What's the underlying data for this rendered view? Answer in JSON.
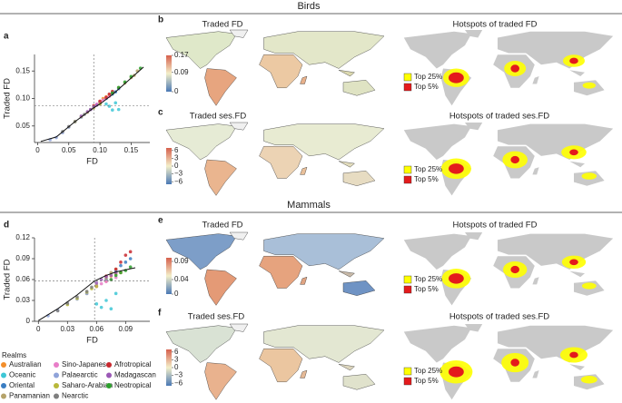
{
  "chart_data": [
    {
      "type": "scatter",
      "xlabel": "FD",
      "ylabel": "Traded FD",
      "legend_title": "Realms",
      "xlim": [
        -0.005,
        0.18
      ],
      "ylim": [
        0.02,
        0.18
      ],
      "xticks": [
        0,
        0.05,
        {
          "value": 0.1,
          "label": "0.10"
        },
        0.15
      ],
      "yticks": [
        0.05,
        {
          "value": 0.1,
          "label": "0.10"
        },
        0.15
      ],
      "vline": 0.09,
      "hline": 0.087,
      "fit": {
        "x": [
          0.005,
          0.03,
          0.06,
          0.09,
          0.1,
          0.12,
          0.14,
          0.17
        ],
        "values": [
          0.022,
          0.03,
          0.058,
          0.083,
          0.09,
          0.107,
          0.127,
          0.157
        ]
      },
      "series": [
        {
          "name": "Australian",
          "color": "#f28e2b",
          "x": [
            0.1,
            0.105,
            0.11,
            0.115,
            0.12
          ],
          "values": [
            0.095,
            0.1,
            0.103,
            0.107,
            0.11
          ]
        },
        {
          "name": "Oceanic",
          "color": "#3ec7d6",
          "x": [
            0.11,
            0.115,
            0.12,
            0.125,
            0.13
          ],
          "values": [
            0.09,
            0.086,
            0.079,
            0.092,
            0.08
          ]
        },
        {
          "name": "Oriental",
          "color": "#3a7dc2",
          "x": [
            0.1,
            0.11,
            0.12,
            0.125,
            0.13
          ],
          "values": [
            0.092,
            0.1,
            0.108,
            0.112,
            0.118
          ]
        },
        {
          "name": "Panamanian",
          "color": "#b5a36a",
          "x": [
            0.13,
            0.14,
            0.15,
            0.155,
            0.16
          ],
          "values": [
            0.12,
            0.128,
            0.138,
            0.142,
            0.15
          ]
        },
        {
          "name": "Sino-Japanese",
          "color": "#e87dc8",
          "x": [
            0.095,
            0.1,
            0.105,
            0.11,
            0.115
          ],
          "values": [
            0.09,
            0.094,
            0.097,
            0.101,
            0.104
          ]
        },
        {
          "name": "Palaearctic",
          "color": "#8fa3d9",
          "x": [
            0.02,
            0.03,
            0.04,
            0.05,
            0.07
          ],
          "values": [
            0.025,
            0.029,
            0.038,
            0.048,
            0.066
          ]
        },
        {
          "name": "Saharo-Arabian",
          "color": "#b8b83a",
          "x": [
            0.06,
            0.07,
            0.08,
            0.09,
            0.1
          ],
          "values": [
            0.058,
            0.067,
            0.075,
            0.083,
            0.09
          ]
        },
        {
          "name": "Nearctic",
          "color": "#7f7f7f",
          "x": [
            0.04,
            0.05,
            0.06,
            0.075,
            0.085
          ],
          "values": [
            0.04,
            0.049,
            0.058,
            0.071,
            0.08
          ]
        },
        {
          "name": "Afrotropical",
          "color": "#c8282e",
          "x": [
            0.09,
            0.1,
            0.11,
            0.115,
            0.12
          ],
          "values": [
            0.087,
            0.095,
            0.102,
            0.108,
            0.113
          ]
        },
        {
          "name": "Madagascan",
          "color": "#9b59b6",
          "x": [
            0.07,
            0.08,
            0.085,
            0.09,
            0.095
          ],
          "values": [
            0.068,
            0.076,
            0.08,
            0.085,
            0.088
          ]
        },
        {
          "name": "Neotropical",
          "color": "#2ca02c",
          "x": [
            0.12,
            0.13,
            0.14,
            0.15,
            0.165
          ],
          "values": [
            0.11,
            0.12,
            0.13,
            0.14,
            0.155
          ]
        }
      ]
    },
    {
      "type": "scatter",
      "xlabel": "FD",
      "ylabel": "Traded FD",
      "xlim": [
        -0.004,
        0.115
      ],
      "ylim": [
        0,
        0.12
      ],
      "xticks": [
        0,
        0.03,
        0.06,
        0.09
      ],
      "yticks": [
        0,
        0.03,
        0.06,
        0.09,
        0.12
      ],
      "vline": 0.058,
      "hline": 0.058,
      "fit": {
        "x": [
          0,
          0.02,
          0.04,
          0.058,
          0.07,
          0.08,
          0.09,
          0.1
        ],
        "values": [
          0.001,
          0.018,
          0.038,
          0.058,
          0.066,
          0.071,
          0.074,
          0.077
        ]
      },
      "series": [
        {
          "color": "#f28e2b",
          "x": [
            0.06,
            0.07,
            0.075,
            0.08,
            0.085
          ],
          "values": [
            0.05,
            0.058,
            0.065,
            0.068,
            0.07
          ]
        },
        {
          "color": "#3ec7d6",
          "x": [
            0.065,
            0.07,
            0.075,
            0.08,
            0.06
          ],
          "values": [
            0.02,
            0.03,
            0.018,
            0.04,
            0.025
          ]
        },
        {
          "color": "#3a7dc2",
          "x": [
            0.07,
            0.08,
            0.085,
            0.09,
            0.095
          ],
          "values": [
            0.06,
            0.072,
            0.08,
            0.085,
            0.09
          ]
        },
        {
          "color": "#b5a36a",
          "x": [
            0.05,
            0.06,
            0.07,
            0.075,
            0.08
          ],
          "values": [
            0.04,
            0.052,
            0.062,
            0.07,
            0.075
          ]
        },
        {
          "color": "#e87dc8",
          "x": [
            0.06,
            0.065,
            0.07,
            0.075,
            0.08
          ],
          "values": [
            0.05,
            0.054,
            0.057,
            0.06,
            0.063
          ]
        },
        {
          "color": "#8fa3d9",
          "x": [
            0.01,
            0.02,
            0.03,
            0.04,
            0.05
          ],
          "values": [
            0.008,
            0.016,
            0.025,
            0.032,
            0.04
          ]
        },
        {
          "color": "#b8b83a",
          "x": [
            0.03,
            0.04,
            0.05,
            0.055,
            0.06
          ],
          "values": [
            0.024,
            0.033,
            0.042,
            0.047,
            0.05
          ]
        },
        {
          "color": "#7f7f7f",
          "x": [
            0.02,
            0.03,
            0.04,
            0.05,
            0.055
          ],
          "values": [
            0.015,
            0.026,
            0.035,
            0.043,
            0.049
          ]
        },
        {
          "color": "#c8282e",
          "x": [
            0.07,
            0.08,
            0.085,
            0.09,
            0.095
          ],
          "values": [
            0.065,
            0.075,
            0.085,
            0.095,
            0.1
          ]
        },
        {
          "color": "#9b59b6",
          "x": [
            0.06,
            0.065,
            0.07,
            0.075,
            0.08
          ],
          "values": [
            0.055,
            0.06,
            0.064,
            0.066,
            0.07
          ]
        },
        {
          "color": "#2ca02c",
          "x": [
            0.075,
            0.08,
            0.085,
            0.09,
            0.095
          ],
          "values": [
            0.06,
            0.066,
            0.07,
            0.073,
            0.078
          ]
        }
      ]
    }
  ],
  "figure": {
    "sections": [
      "Birds",
      "Mammals"
    ],
    "panel_labels": [
      "a",
      "b",
      "c",
      "d",
      "e",
      "f"
    ],
    "hotspot_colors": [
      "#ffff00",
      "#e41a1c"
    ],
    "maps": [
      {
        "title": "Traded FD",
        "colorbar": {
          "lim": [
            0,
            0.17
          ],
          "ticks": [
            0.17,
            0.09,
            0
          ]
        }
      },
      {
        "title": "Hotspots of traded FD",
        "legend": [
          "Top 25%",
          "Top 5%"
        ]
      },
      {
        "title": "Traded ses.FD",
        "colorbar": {
          "lim": [
            -7,
            7
          ],
          "ticks": [
            6,
            3,
            0,
            {
              "value": -3,
              "label": "−3"
            },
            {
              "value": -6,
              "label": "−6"
            }
          ]
        }
      },
      {
        "title": "Hotspots of traded ses.FD",
        "legend": [
          "Top 25%",
          "Top 5%"
        ]
      },
      {
        "title": "Traded FD",
        "colorbar": {
          "lim": [
            0,
            0.1
          ],
          "ticks": [
            0.09,
            0.04,
            0
          ]
        }
      },
      {
        "title": "Hotspots of traded FD",
        "legend": [
          "Top 25%",
          "Top 5%"
        ]
      },
      {
        "title": "Traded ses.FD",
        "colorbar": {
          "lim": [
            -7,
            7
          ],
          "ticks": [
            6,
            3,
            0,
            {
              "value": -3,
              "label": "−3"
            },
            {
              "value": -6,
              "label": "−6"
            }
          ]
        }
      },
      {
        "title": "Hotspots of traded ses.FD",
        "legend": [
          "Top 25%",
          "Top 5%"
        ]
      }
    ]
  }
}
